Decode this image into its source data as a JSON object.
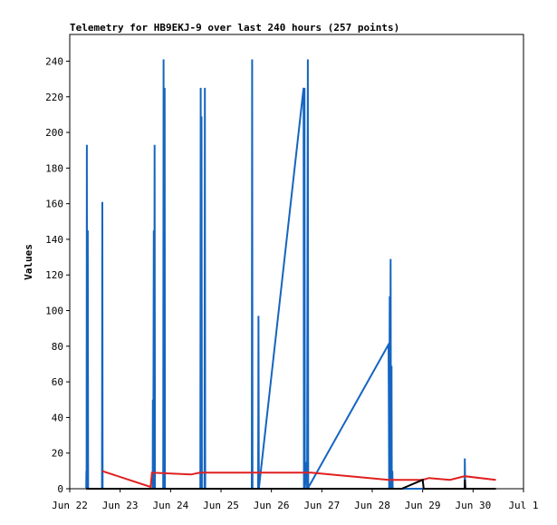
{
  "chart_data": {
    "type": "line",
    "title": "Telemetry for HB9EKJ-9 over last 240 hours (257 points)",
    "xlabel": "",
    "ylabel": "Values",
    "xlim": [
      "2025-06-22T00:00",
      "2025-07-01T00:00"
    ],
    "ylim": [
      0,
      255
    ],
    "x_ticks": [
      "Jun 22",
      "Jun 23",
      "Jun 24",
      "Jun 25",
      "Jun 26",
      "Jun 27",
      "Jun 28",
      "Jun 29",
      "Jun 30",
      "Jul 1"
    ],
    "y_ticks": [
      0,
      20,
      40,
      60,
      80,
      100,
      120,
      140,
      160,
      180,
      200,
      220,
      240
    ],
    "grid": false,
    "legend": "none",
    "series": [
      {
        "color": "#1565c0",
        "points": [
          [
            "2025-06-22T07:50",
            0
          ],
          [
            "2025-06-22T07:55",
            10
          ],
          [
            "2025-06-22T08:00",
            0
          ],
          [
            "2025-06-22T08:10",
            193
          ],
          [
            "2025-06-22T08:20",
            0
          ],
          [
            "2025-06-22T08:35",
            145
          ],
          [
            "2025-06-22T08:45",
            0
          ],
          [
            "2025-06-22T15:20",
            0
          ],
          [
            "2025-06-22T15:30",
            161
          ],
          [
            "2025-06-22T15:40",
            0
          ],
          [
            "2025-06-23T15:30",
            0
          ],
          [
            "2025-06-23T15:35",
            50
          ],
          [
            "2025-06-23T15:45",
            0
          ],
          [
            "2025-06-23T16:00",
            145
          ],
          [
            "2025-06-23T16:10",
            0
          ],
          [
            "2025-06-23T16:25",
            193
          ],
          [
            "2025-06-23T16:35",
            0
          ],
          [
            "2025-06-23T20:30",
            0
          ],
          [
            "2025-06-23T20:40",
            241
          ],
          [
            "2025-06-23T20:50",
            0
          ],
          [
            "2025-06-23T21:10",
            225
          ],
          [
            "2025-06-23T21:20",
            0
          ],
          [
            "2025-06-24T14:10",
            0
          ],
          [
            "2025-06-24T14:20",
            225
          ],
          [
            "2025-06-24T14:30",
            0
          ],
          [
            "2025-06-24T14:45",
            209
          ],
          [
            "2025-06-24T14:55",
            0
          ],
          [
            "2025-06-24T16:10",
            0
          ],
          [
            "2025-06-24T16:20",
            225
          ],
          [
            "2025-06-24T16:30",
            0
          ],
          [
            "2025-06-25T14:40",
            0
          ],
          [
            "2025-06-25T14:50",
            241
          ],
          [
            "2025-06-25T15:00",
            0
          ],
          [
            "2025-06-25T17:40",
            0
          ],
          [
            "2025-06-25T17:50",
            97
          ],
          [
            "2025-06-25T18:00",
            0
          ],
          [
            "2025-06-26T15:20",
            225
          ],
          [
            "2025-06-26T15:30",
            0
          ],
          [
            "2025-06-26T15:45",
            225
          ],
          [
            "2025-06-26T15:55",
            0
          ],
          [
            "2025-06-26T16:50",
            15
          ],
          [
            "2025-06-26T17:00",
            0
          ],
          [
            "2025-06-26T17:20",
            241
          ],
          [
            "2025-06-26T17:30",
            0
          ],
          [
            "2025-06-26T17:45",
            1
          ],
          [
            "2025-06-28T07:45",
            81
          ],
          [
            "2025-06-28T07:55",
            40
          ],
          [
            "2025-06-28T08:05",
            0
          ],
          [
            "2025-06-28T08:20",
            108
          ],
          [
            "2025-06-28T08:30",
            0
          ],
          [
            "2025-06-28T08:45",
            129
          ],
          [
            "2025-06-28T08:55",
            0
          ],
          [
            "2025-06-28T09:10",
            69
          ],
          [
            "2025-06-28T09:20",
            0
          ],
          [
            "2025-06-28T09:35",
            10
          ],
          [
            "2025-06-28T09:45",
            0
          ],
          [
            "2025-06-29T09:50",
            0
          ],
          [
            "2025-06-29T20:00",
            0
          ],
          [
            "2025-06-29T20:05",
            17
          ],
          [
            "2025-06-29T20:15",
            0
          ],
          [
            "2025-06-30T10:50",
            0
          ]
        ]
      },
      {
        "color": "#e02020",
        "points": [
          [
            "2025-06-22T15:20",
            10
          ],
          [
            "2025-06-23T14:30",
            1
          ],
          [
            "2025-06-23T15:10",
            9
          ],
          [
            "2025-06-24T09:40",
            8
          ],
          [
            "2025-06-24T14:00",
            9
          ],
          [
            "2025-06-25T14:00",
            9
          ],
          [
            "2025-06-26T19:00",
            9
          ],
          [
            "2025-06-28T07:50",
            5
          ],
          [
            "2025-06-29T00:00",
            5
          ],
          [
            "2025-06-29T03:00",
            6
          ],
          [
            "2025-06-29T13:00",
            5
          ],
          [
            "2025-06-29T20:00",
            7
          ],
          [
            "2025-06-30T10:50",
            5
          ]
        ]
      },
      {
        "color": "#000000",
        "points": [
          [
            "2025-06-22T07:50",
            0
          ],
          [
            "2025-06-28T09:30",
            0
          ],
          [
            "2025-06-28T14:00",
            0
          ],
          [
            "2025-06-29T00:00",
            5
          ],
          [
            "2025-06-29T00:30",
            0
          ],
          [
            "2025-06-29T20:00",
            0
          ],
          [
            "2025-06-29T20:10",
            5
          ],
          [
            "2025-06-29T20:20",
            0
          ],
          [
            "2025-06-30T10:50",
            0
          ]
        ]
      }
    ]
  }
}
